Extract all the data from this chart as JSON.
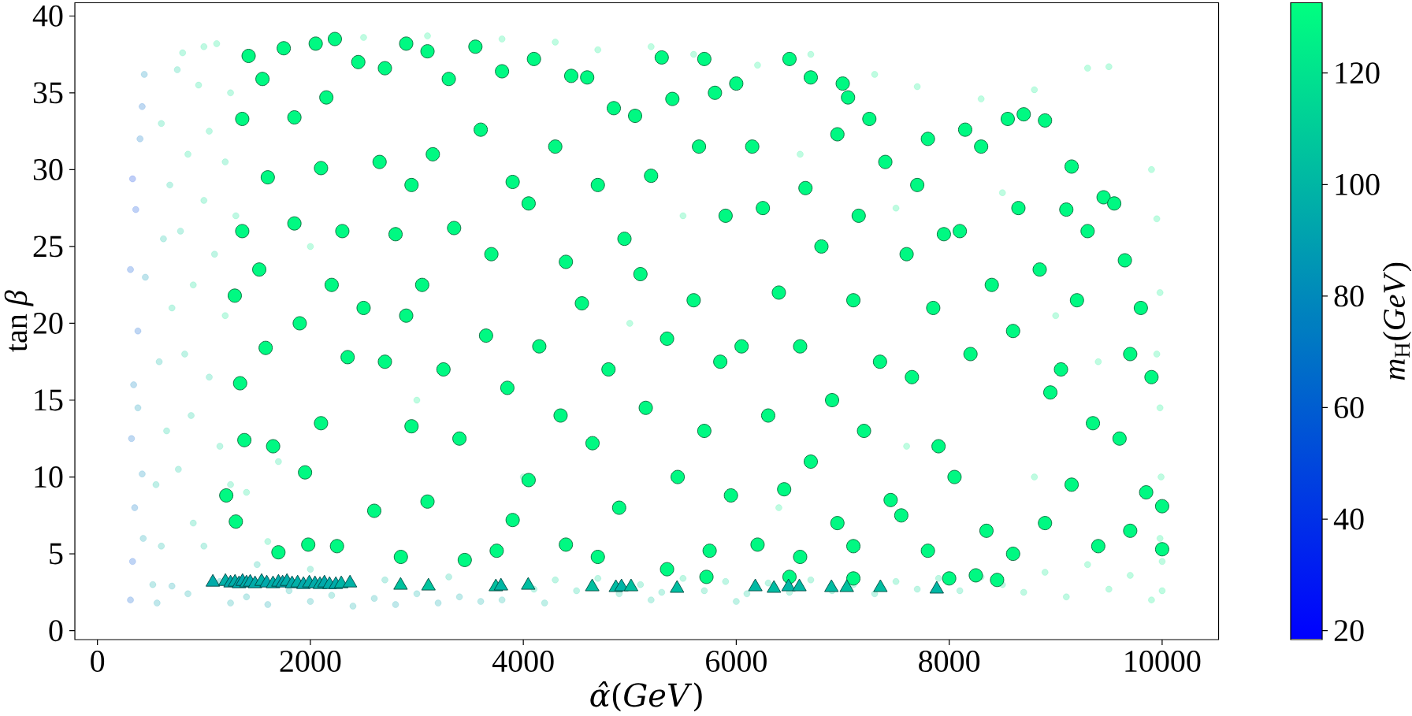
{
  "chart_data": {
    "type": "scatter",
    "xlabel": "*α̂*(*GeV*)",
    "ylabel": "tan *β*",
    "clabel": "*m*$_{H}$(*GeV*)",
    "xlim": [
      -212,
      10530
    ],
    "ylim": [
      -0.58,
      40.86
    ],
    "xticks": [
      0,
      2000,
      4000,
      6000,
      8000,
      10000
    ],
    "yticks": [
      0,
      5,
      10,
      15,
      20,
      25,
      30,
      35,
      40
    ],
    "clim": [
      18.4,
      132.6
    ],
    "cticks": [
      20,
      40,
      60,
      80,
      100,
      120
    ],
    "series": [
      {
        "marker": "circle",
        "x": [
          310,
          330,
          350,
          320,
          340,
          380,
          310,
          360,
          330,
          400,
          420,
          440,
          380,
          420,
          430,
          450,
          520,
          560,
          600,
          550,
          650,
          580,
          700,
          620,
          680,
          600,
          750,
          800,
          850,
          780,
          900,
          820,
          880,
          760,
          900,
          850,
          700,
          950,
          1000,
          1050,
          1120,
          1000,
          1100,
          1200,
          1050,
          1150,
          1250,
          1000,
          1150,
          1250,
          1300,
          1250,
          1200,
          1400,
          1600,
          1800,
          2000,
          2200,
          2400,
          2600,
          2800,
          3000,
          3200,
          3400,
          3600,
          3800,
          2700,
          3300,
          2000,
          1500,
          4100,
          4300,
          4500,
          4700,
          4900,
          5100,
          5300,
          5500,
          5700,
          5900,
          6100,
          6300,
          6500,
          6700,
          6900,
          7100,
          7300,
          7500,
          7700,
          7900,
          8100,
          8300,
          8500,
          4200,
          5200,
          6000,
          8700,
          8900,
          9100,
          9300,
          9500,
          9700,
          9900,
          10000,
          2500,
          3100,
          3800,
          4300,
          4700,
          5200,
          5600,
          6200,
          6700,
          7300,
          7700,
          8300,
          8800,
          9300,
          9500,
          9900,
          9950,
          9980,
          9950,
          9980,
          9990,
          9980,
          10000,
          5500,
          6600,
          7500,
          8500,
          9000,
          9400,
          8800,
          7600,
          6400,
          5000,
          4000,
          3000,
          2000,
          1600,
          1400,
          1700
        ],
        "values": [
          2.0,
          4.5,
          8.0,
          12.5,
          16.0,
          19.5,
          23.5,
          27.4,
          29.4,
          32.0,
          34.1,
          36.2,
          14.5,
          10.2,
          6.0,
          23.0,
          3.0,
          1.8,
          5.5,
          9.5,
          13.0,
          17.5,
          21.0,
          25.5,
          29.0,
          33.0,
          36.5,
          37.6,
          31.0,
          26.0,
          22.5,
          18.0,
          14.0,
          10.5,
          7.0,
          2.4,
          2.9,
          35.5,
          38.0,
          32.5,
          38.2,
          28.0,
          24.5,
          20.5,
          16.5,
          12.0,
          9.5,
          5.5,
          3.2,
          1.8,
          27.0,
          35.0,
          30.5,
          2.2,
          1.7,
          2.6,
          1.9,
          2.3,
          1.6,
          2.1,
          1.7,
          2.4,
          1.8,
          2.2,
          1.9,
          2.0,
          3.3,
          3.5,
          4.0,
          4.3,
          2.7,
          3.3,
          2.6,
          3.4,
          2.4,
          3.0,
          2.5,
          3.4,
          2.6,
          3.2,
          2.4,
          3.1,
          2.5,
          3.3,
          2.6,
          3.0,
          2.4,
          3.2,
          2.7,
          3.4,
          2.6,
          3.5,
          3.0,
          1.8,
          2.0,
          1.9,
          2.5,
          3.8,
          2.2,
          4.3,
          2.7,
          3.6,
          2.0,
          2.6,
          38.6,
          38.7,
          38.5,
          38.3,
          37.8,
          38.0,
          37.5,
          36.8,
          37.5,
          36.2,
          35.4,
          34.6,
          35.2,
          36.6,
          36.7,
          30.0,
          26.8,
          22.0,
          18.0,
          14.5,
          10.0,
          6.0,
          4.5,
          27.0,
          31.0,
          27.5,
          28.5,
          20.5,
          17.5,
          10.0,
          12.0,
          8.0,
          20.0,
          10.0,
          15.0,
          25.0,
          5.8,
          9.0,
          11.0
        ],
        "cvalues": [
          60,
          55,
          70,
          65,
          75,
          60,
          55,
          50,
          45,
          70,
          65,
          80,
          85,
          80,
          90,
          85,
          95,
          90,
          100,
          105,
          110,
          100,
          115,
          105,
          110,
          115,
          110,
          120,
          120,
          110,
          118,
          112,
          110,
          108,
          112,
          95,
          92,
          120,
          122,
          120,
          124,
          118,
          115,
          122,
          112,
          116,
          118,
          108,
          98,
          95,
          120,
          122,
          118,
          95,
          92,
          98,
          95,
          100,
          96,
          95,
          92,
          98,
          94,
          96,
          97,
          100,
          105,
          108,
          110,
          105,
          112,
          115,
          112,
          116,
          110,
          114,
          112,
          118,
          113,
          116,
          112,
          115,
          113,
          117,
          114,
          116,
          112,
          118,
          115,
          118,
          116,
          120,
          118,
          105,
          108,
          110,
          122,
          124,
          122,
          125,
          124,
          126,
          125,
          126,
          126,
          127,
          126,
          127,
          126,
          127,
          126,
          127,
          126,
          127,
          126,
          127,
          126,
          127,
          126,
          127,
          126,
          127,
          126,
          127,
          126,
          127,
          126,
          126,
          127,
          126,
          127,
          126,
          127,
          126,
          127,
          126,
          127,
          126,
          127,
          126,
          120,
          122,
          120
        ],
        "colors": [
          "#005dd1",
          "#0052d6",
          "#0073c5",
          "#0068cb",
          "#007ec0",
          "#005dd1",
          "#0052d6",
          "#0047dc",
          "#003be1",
          "#0073c5",
          "#0068cb",
          "#008aba",
          "#0095b5",
          "#008aba",
          "#00a0af",
          "#0095b5",
          "#00aba9",
          "#00a0af",
          "#00b6a4",
          "#00c19e",
          "#00cd99",
          "#00b6a4",
          "#00d893",
          "#00c19e",
          "#00cd99",
          "#00d893",
          "#00cd99",
          "#00e38e",
          "#00e38e",
          "#00cd99",
          "#00de90",
          "#00d196",
          "#00cd99",
          "#00c89b",
          "#00d196",
          "#00aba9",
          "#00a4ad",
          "#00e38e",
          "#00e78b",
          "#00e38e",
          "#00ec89",
          "#00de90",
          "#00d893",
          "#00e78b",
          "#00d196",
          "#00da92",
          "#00de90",
          "#00c89b",
          "#00b2a6",
          "#00aba9",
          "#00e38e",
          "#00e78b",
          "#00de90",
          "#00aba9",
          "#00a4ad",
          "#00b2a6",
          "#00aba9",
          "#00b6a4",
          "#00ada8",
          "#00aba9",
          "#00a4ad",
          "#00b2a6",
          "#00a9ab",
          "#00ada8",
          "#00b0a7",
          "#00b6a4",
          "#00c19e",
          "#00c89b",
          "#00cd99",
          "#00c19e",
          "#00d196",
          "#00d893",
          "#00d196",
          "#00da92",
          "#00cd99",
          "#00d594",
          "#00d196",
          "#00de90",
          "#00d395",
          "#00da92",
          "#00d196",
          "#00d893",
          "#00d395",
          "#00dc91",
          "#00d594",
          "#00da92",
          "#00d196",
          "#00de90",
          "#00d893",
          "#00de90",
          "#00da92",
          "#00e38e",
          "#00de90",
          "#00c19e",
          "#00c89b",
          "#00cd99",
          "#00e78b",
          "#00ec89",
          "#00e78b",
          "#00ee88",
          "#00ec89",
          "#00f087",
          "#00ee88",
          "#00f087",
          "#00f087",
          "#00f386",
          "#00f087",
          "#00f386",
          "#00f087",
          "#00f386",
          "#00f087",
          "#00f386",
          "#00f087",
          "#00f386",
          "#00f087",
          "#00f386",
          "#00f087",
          "#00f386",
          "#00f087",
          "#00f386",
          "#00f087",
          "#00f386",
          "#00f087",
          "#00f386",
          "#00f087",
          "#00f386",
          "#00f087",
          "#00f087",
          "#00f386",
          "#00f087",
          "#00f386",
          "#00f087",
          "#00f386",
          "#00f087",
          "#00f386",
          "#00f087",
          "#00f386",
          "#00f087",
          "#00f386",
          "#00f087",
          "#00e38e",
          "#00e78b",
          "#00e38e"
        ]
      },
      {
        "marker": "circle",
        "color": "#00f982",
        "x": [
          1210,
          1300,
          1290,
          1340,
          1360,
          1360,
          1420,
          1380,
          1550,
          1600,
          1520,
          1580,
          1650,
          1700,
          1750,
          1850,
          1850,
          1900,
          1950,
          1980,
          2050,
          2230,
          2150,
          2100,
          2300,
          2200,
          2350,
          2100,
          2250,
          2450,
          2500,
          2700,
          2900,
          2650,
          2800,
          2700,
          2950,
          2600,
          2850,
          2950,
          2900,
          3100,
          3300,
          3150,
          3350,
          3050,
          3250,
          3400,
          3100,
          3450,
          3550,
          3800,
          3600,
          3900,
          3700,
          3650,
          3850,
          3900,
          3750,
          4100,
          4450,
          4300,
          4050,
          4400,
          4150,
          4350,
          4050,
          4400,
          4600,
          4850,
          4700,
          4950,
          4550,
          4800,
          4650,
          4900,
          4700,
          5050,
          5300,
          5200,
          5400,
          5100,
          5350,
          5150,
          5450,
          5350,
          5700,
          5800,
          5650,
          5900,
          5600,
          5850,
          5700,
          5950,
          5750,
          5720,
          6000,
          6150,
          6250,
          6400,
          6050,
          6300,
          6450,
          6200,
          6500,
          6500,
          6700,
          6650,
          6800,
          6950,
          6600,
          6900,
          6700,
          6950,
          6600,
          7000,
          7050,
          7250,
          7150,
          7400,
          7100,
          7350,
          7200,
          7450,
          7100,
          7100,
          7800,
          7700,
          7600,
          7850,
          7650,
          7900,
          7550,
          7800,
          8000,
          7950,
          8150,
          8300,
          8100,
          8400,
          8200,
          8050,
          8350,
          8250,
          8450,
          8550,
          8700,
          8900,
          8650,
          8850,
          8600,
          8950,
          8900,
          8600,
          9150,
          9100,
          9300,
          9200,
          9050,
          9350,
          9150,
          9400,
          9450,
          9550,
          9650,
          9800,
          9700,
          9900,
          9600,
          9850,
          9700,
          10000,
          10000
        ],
        "values": [
          8.8,
          7.1,
          21.8,
          16.1,
          26.0,
          33.3,
          37.4,
          12.4,
          35.9,
          29.5,
          23.5,
          18.4,
          12.0,
          5.1,
          37.9,
          33.4,
          26.5,
          20.0,
          10.3,
          5.6,
          38.2,
          38.5,
          34.7,
          30.1,
          26.0,
          22.5,
          17.8,
          13.5,
          5.5,
          37.0,
          21.0,
          36.6,
          38.2,
          30.5,
          25.8,
          17.5,
          13.3,
          7.8,
          4.8,
          29.0,
          20.5,
          37.7,
          35.9,
          31.0,
          26.2,
          22.5,
          17.0,
          12.5,
          8.4,
          4.6,
          38.0,
          36.4,
          32.6,
          29.2,
          24.5,
          19.2,
          15.8,
          7.2,
          5.2,
          37.2,
          36.1,
          31.5,
          27.8,
          24.0,
          18.5,
          14.0,
          9.8,
          5.6,
          36.0,
          34.0,
          29.0,
          25.5,
          21.3,
          17.0,
          12.2,
          8.0,
          4.8,
          33.5,
          37.3,
          29.6,
          34.6,
          23.2,
          19.0,
          14.5,
          10.0,
          4.0,
          37.2,
          35.0,
          31.5,
          27.0,
          21.5,
          17.5,
          13.0,
          8.8,
          5.2,
          3.5,
          35.6,
          31.5,
          27.5,
          22.0,
          18.5,
          14.0,
          9.2,
          5.6,
          3.5,
          37.2,
          36.0,
          28.8,
          25.0,
          32.3,
          18.5,
          15.0,
          11.0,
          7.0,
          4.8,
          35.6,
          34.7,
          33.3,
          27.0,
          30.5,
          21.5,
          17.5,
          13.0,
          8.5,
          5.5,
          3.4,
          32.0,
          29.0,
          24.5,
          21.0,
          16.5,
          12.0,
          7.5,
          5.2,
          3.4,
          25.8,
          32.6,
          31.5,
          26.0,
          22.5,
          18.0,
          10.0,
          6.5,
          3.6,
          3.3,
          33.3,
          33.6,
          33.2,
          27.5,
          23.5,
          19.5,
          15.5,
          7.0,
          5.0,
          30.2,
          27.4,
          26.0,
          21.5,
          17.0,
          13.5,
          9.5,
          5.5,
          28.2,
          27.8,
          24.1,
          21.0,
          18.0,
          16.5,
          12.5,
          9.0,
          6.5,
          5.3,
          8.1
        ],
        "cvalues": [
          130,
          130,
          130,
          130,
          130,
          130,
          130,
          130,
          130,
          130,
          130,
          130,
          130,
          130,
          130,
          130,
          130,
          130,
          130,
          130,
          130,
          130,
          130,
          130,
          130,
          130,
          130,
          130,
          130,
          130,
          130,
          130,
          130,
          130,
          130,
          130,
          130,
          130,
          130,
          130,
          130,
          130,
          130,
          130,
          130,
          130,
          130,
          130,
          130,
          130,
          130,
          130,
          130,
          130,
          130,
          130,
          130,
          130,
          130,
          130,
          130,
          130,
          130,
          130,
          130,
          130,
          130,
          130,
          130,
          130,
          130,
          130,
          130,
          130,
          130,
          130,
          130,
          130,
          130,
          130,
          130,
          130,
          130,
          130,
          130,
          130,
          130,
          130,
          130,
          130,
          130,
          130,
          130,
          130,
          130,
          130,
          130,
          130,
          130,
          130,
          130,
          130,
          130,
          130,
          130,
          130,
          130,
          130,
          130,
          130,
          130,
          130,
          130,
          130,
          130,
          130,
          130,
          130,
          130,
          130,
          130,
          130,
          130,
          130,
          130,
          130,
          130,
          130,
          130,
          130,
          130,
          130,
          130,
          130,
          130,
          130,
          130,
          130,
          130,
          130,
          130,
          130,
          130,
          130,
          130,
          130,
          130,
          130,
          130,
          130,
          130,
          130,
          130,
          130,
          130,
          130,
          130,
          130,
          130,
          130,
          130,
          130,
          130,
          130,
          130,
          130,
          130,
          130,
          130,
          130,
          130,
          130,
          130
        ]
      },
      {
        "marker": "triangle",
        "x": [
          1084,
          1202,
          1250,
          1292,
          1330,
          1363,
          1400,
          1435,
          1480,
          1542,
          1590,
          1649,
          1700,
          1739,
          1780,
          1828,
          1880,
          1935,
          1990,
          2043,
          2090,
          2132,
          2180,
          2239,
          2290,
          2372,
          2847,
          3109,
          3742,
          3790,
          4046,
          4647,
          4869,
          4922,
          5012,
          5444,
          6179,
          6354,
          6491,
          6593,
          6894,
          7038,
          7354,
          7883
        ],
        "values": [
          3.15,
          3.2,
          3.1,
          3.15,
          3.05,
          3.2,
          3.1,
          3.15,
          3.05,
          3.2,
          3.1,
          3.05,
          3.15,
          3.1,
          3.2,
          3.05,
          3.1,
          3.0,
          3.1,
          3.05,
          3.0,
          3.1,
          3.0,
          3.0,
          3.05,
          3.1,
          2.95,
          2.9,
          2.85,
          2.9,
          2.95,
          2.85,
          2.8,
          2.85,
          2.85,
          2.75,
          2.85,
          2.75,
          2.85,
          2.85,
          2.8,
          2.8,
          2.8,
          2.7
        ],
        "cvalues": [
          95,
          97,
          94,
          96,
          95,
          93,
          96,
          94,
          95,
          97,
          94,
          96,
          95,
          93,
          96,
          95,
          97,
          94,
          96,
          95,
          97,
          94,
          96,
          95,
          99,
          98,
          105,
          106,
          104,
          100,
          103,
          104,
          102,
          99,
          104,
          103,
          101,
          102,
          100,
          101,
          102,
          104,
          103,
          100
        ],
        "colors": [
          "#00aba9",
          "#00b0a7",
          "#00a9ab",
          "#00ada8",
          "#00aba9",
          "#00a7ac",
          "#00ada8",
          "#00a9ab",
          "#00aba9",
          "#00b0a7",
          "#00a9ab",
          "#00ada8",
          "#00aba9",
          "#00a7ac",
          "#00ada8",
          "#00aba9",
          "#00b0a7",
          "#00a9ab",
          "#00ada8",
          "#00aba9",
          "#00b0a7",
          "#00a9ab",
          "#00ada8",
          "#00aba9",
          "#00b4a5",
          "#00b2a6",
          "#00c19e",
          "#00c49d",
          "#00bf9f",
          "#00b6a4",
          "#00bda1",
          "#00bf9f",
          "#00bba2",
          "#00b4a5",
          "#00bf9f",
          "#00bda1",
          "#00b8a3",
          "#00bba2",
          "#00b6a4",
          "#00b8a3",
          "#00bba2",
          "#00bf9f",
          "#00bda1",
          "#00b6a4"
        ]
      }
    ]
  }
}
